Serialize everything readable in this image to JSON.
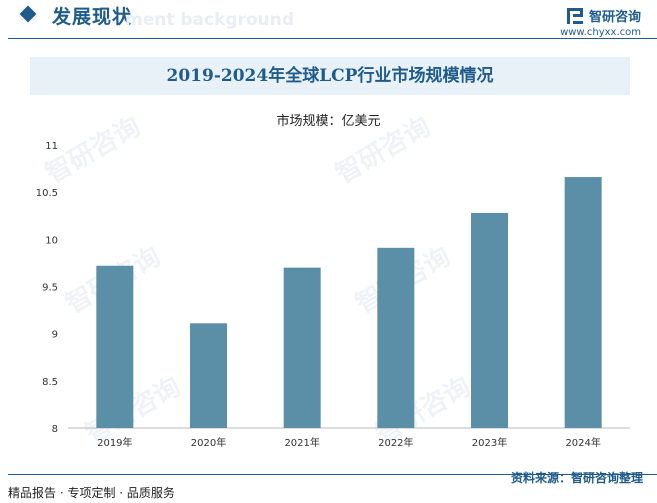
{
  "header": {
    "section_title": "发展现状",
    "ghost_text": "ment background",
    "brand_name": "智研咨询",
    "brand_url": "www.chyxx.com"
  },
  "watermark_text": "智研咨询",
  "chart_data": {
    "type": "bar",
    "title": "2019-2024年全球LCP行业市场规模情况",
    "unit": "市场规模：亿美元",
    "categories": [
      "2019年",
      "2020年",
      "2021年",
      "2022年",
      "2023年",
      "2024年"
    ],
    "values": [
      9.72,
      9.11,
      9.7,
      9.91,
      10.28,
      10.66
    ],
    "ylim": [
      8,
      11
    ],
    "yticks": [
      8,
      8.5,
      9,
      9.5,
      10,
      10.5,
      11
    ],
    "ytick_labels": [
      "8",
      "8.5",
      "9",
      "9.5",
      "10",
      "10.5",
      "11"
    ],
    "bar_color": "#5b8fa8",
    "xlabel": "",
    "ylabel": ""
  },
  "footer": {
    "services": "精品报告 · 专项定制 · 品质服务",
    "source": "资料来源：智研咨询整理"
  }
}
